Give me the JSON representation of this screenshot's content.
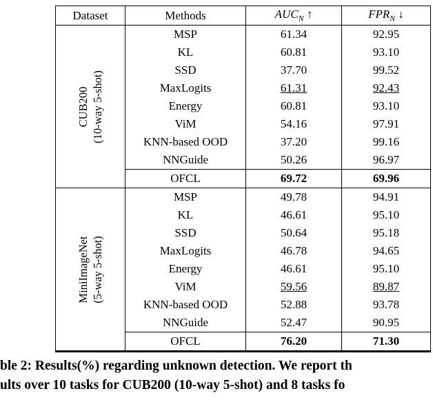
{
  "table": {
    "headers": {
      "dataset": "Dataset",
      "methods": "Methods",
      "auc_name": "AUC",
      "auc_sub": "N",
      "auc_dir": "↑",
      "fpr_name": "FPR",
      "fpr_sub": "N",
      "fpr_dir": "↓"
    },
    "groups": [
      {
        "dataset_line1": "CUB200",
        "dataset_line2": "(10-way 5-shot)",
        "rows": [
          {
            "method": "MSP",
            "auc": "61.34",
            "fpr": "92.95"
          },
          {
            "method": "KL",
            "auc": "60.81",
            "fpr": "93.10"
          },
          {
            "method": "SSD",
            "auc": "37.70",
            "fpr": "99.52"
          },
          {
            "method": "MaxLogits",
            "auc": "61.31",
            "fpr": "92.43",
            "underline": true
          },
          {
            "method": "Energy",
            "auc": "60.81",
            "fpr": "93.10"
          },
          {
            "method": "ViM",
            "auc": "54.16",
            "fpr": "97.91"
          },
          {
            "method": "KNN-based OOD",
            "auc": "37.20",
            "fpr": "99.16"
          },
          {
            "method": "NNGuide",
            "auc": "50.26",
            "fpr": "96.97"
          },
          {
            "method": "OFCL",
            "auc": "69.72",
            "fpr": "69.96",
            "bold": true,
            "final": true
          }
        ]
      },
      {
        "dataset_line1": "MiniImageNet",
        "dataset_line2": "(5-way 5-shot)",
        "rows": [
          {
            "method": "MSP",
            "auc": "49.78",
            "fpr": "94.91"
          },
          {
            "method": "KL",
            "auc": "46.61",
            "fpr": "95.10"
          },
          {
            "method": "SSD",
            "auc": "50.64",
            "fpr": "95.18"
          },
          {
            "method": "MaxLogits",
            "auc": "46.78",
            "fpr": "94.65"
          },
          {
            "method": "Energy",
            "auc": "46.61",
            "fpr": "95.10"
          },
          {
            "method": "ViM",
            "auc": "59.56",
            "fpr": "89.87",
            "underline": true
          },
          {
            "method": "KNN-based OOD",
            "auc": "52.88",
            "fpr": "93.78"
          },
          {
            "method": "NNGuide",
            "auc": "52.47",
            "fpr": "90.95"
          },
          {
            "method": "OFCL",
            "auc": "76.20",
            "fpr": "71.30",
            "bold": true,
            "final": true
          }
        ]
      }
    ]
  },
  "caption": {
    "line1": "ble 2: Results(%) regarding unknown detection. We report th",
    "line2": "ults over 10 tasks for CUB200 (10-way 5-shot) and 8 tasks fo"
  }
}
